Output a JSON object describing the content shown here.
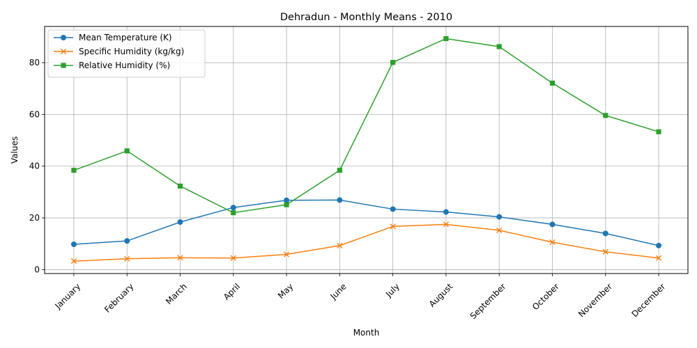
{
  "chart_data": {
    "type": "line",
    "title": "Dehradun - Monthly Means - 2010",
    "xlabel": "Month",
    "ylabel": "Values",
    "categories": [
      "January",
      "February",
      "March",
      "April",
      "May",
      "June",
      "July",
      "August",
      "September",
      "October",
      "November",
      "December"
    ],
    "ylim": [
      -1.5,
      94
    ],
    "yticks": [
      0,
      20,
      40,
      60,
      80
    ],
    "grid": true,
    "legend_position": "top-left",
    "series": [
      {
        "name": "Mean Temperature (K)",
        "color": "#1f77b4",
        "marker": "circle",
        "values": [
          9.8,
          11.1,
          18.4,
          24.0,
          26.8,
          26.9,
          23.4,
          22.3,
          20.4,
          17.5,
          14.0,
          9.3
        ]
      },
      {
        "name": "Specific Humidity (kg/kg)",
        "color": "#ff7f0e",
        "marker": "x",
        "values": [
          3.3,
          4.2,
          4.6,
          4.5,
          5.9,
          9.3,
          16.7,
          17.5,
          15.2,
          10.6,
          6.9,
          4.5
        ]
      },
      {
        "name": "Relative Humidity (%)",
        "color": "#2ca02c",
        "marker": "square",
        "values": [
          38.4,
          45.9,
          32.3,
          22.0,
          25.1,
          38.4,
          80.1,
          89.3,
          86.2,
          72.1,
          59.6,
          53.3
        ]
      }
    ]
  }
}
